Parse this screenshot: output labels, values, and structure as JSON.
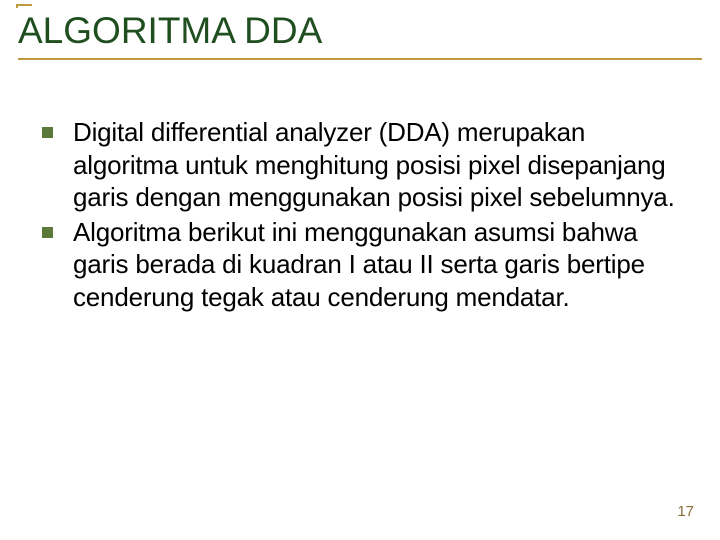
{
  "title": {
    "text": "ALGORITMA DDA",
    "color": "#1f4e1f",
    "fontsize": 37,
    "accent_color": "#c19a3f",
    "underline_color": "#c19a3f"
  },
  "bullets": {
    "marker_color": "#5b7a3a",
    "marker_size": 11,
    "text_color": "#000000",
    "fontsize": 26,
    "items": [
      "Digital differential analyzer (DDA) merupakan algoritma untuk menghitung posisi pixel disepanjang garis dengan menggunakan posisi pixel sebelumnya.",
      "Algoritma berikut ini menggunakan asumsi bahwa garis berada di kuadran I atau II serta garis bertipe cenderung tegak atau cenderung mendatar."
    ]
  },
  "page_number": {
    "text": "17",
    "color": "#8a6d3b",
    "fontsize": 15
  },
  "background_color": "#ffffff"
}
